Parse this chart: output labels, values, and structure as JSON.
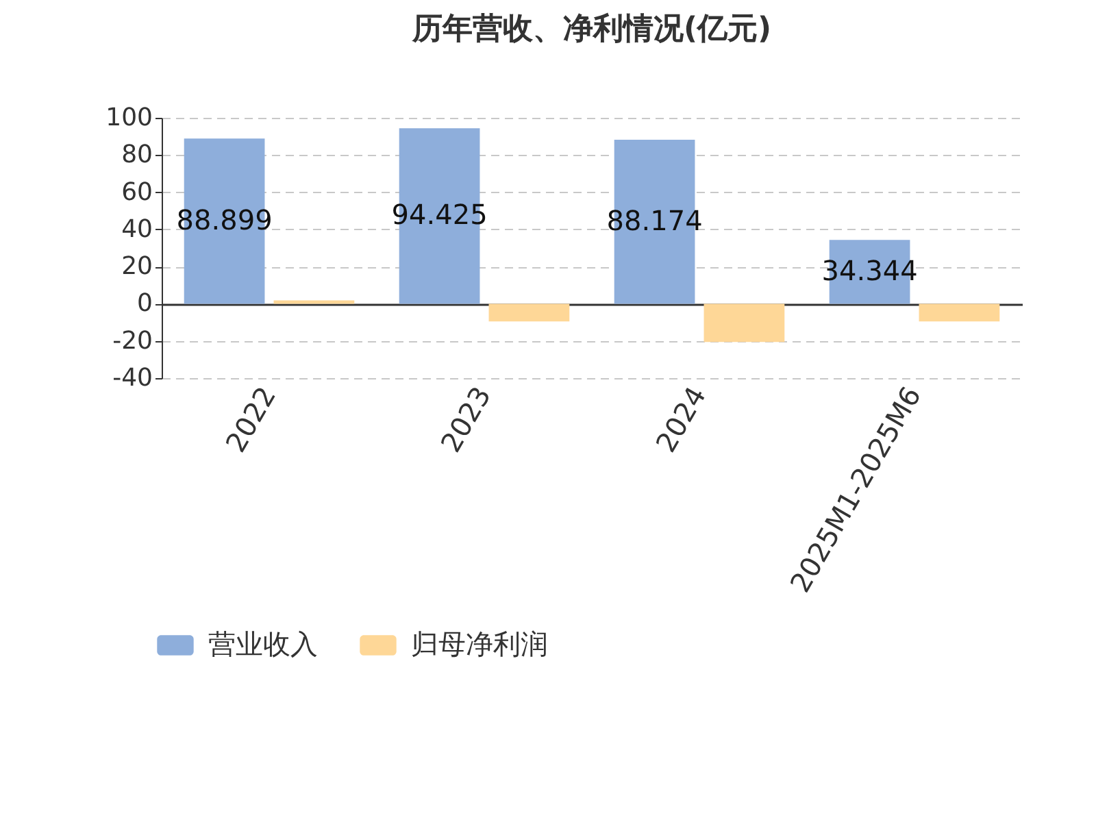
{
  "chart_data": {
    "type": "bar",
    "title": "历年营收、净利情况(亿元)",
    "categories": [
      "2022",
      "2023",
      "2024",
      "2025M1-2025M6"
    ],
    "series": [
      {
        "name": "营业收入",
        "color": "#8eaedb",
        "values": [
          88.899,
          94.425,
          88.174,
          34.344
        ],
        "value_labels": [
          "88.899",
          "94.425",
          "88.174",
          "34.344"
        ]
      },
      {
        "name": "归母净利润",
        "color": "#fed797",
        "values": [
          1.8,
          -9.5,
          -20.6,
          -9.5
        ]
      }
    ],
    "ylim": [
      -40,
      100
    ],
    "yticks": [
      -40,
      -20,
      0,
      20,
      40,
      60,
      80,
      100
    ],
    "grid": "y",
    "legend": "bottom"
  }
}
